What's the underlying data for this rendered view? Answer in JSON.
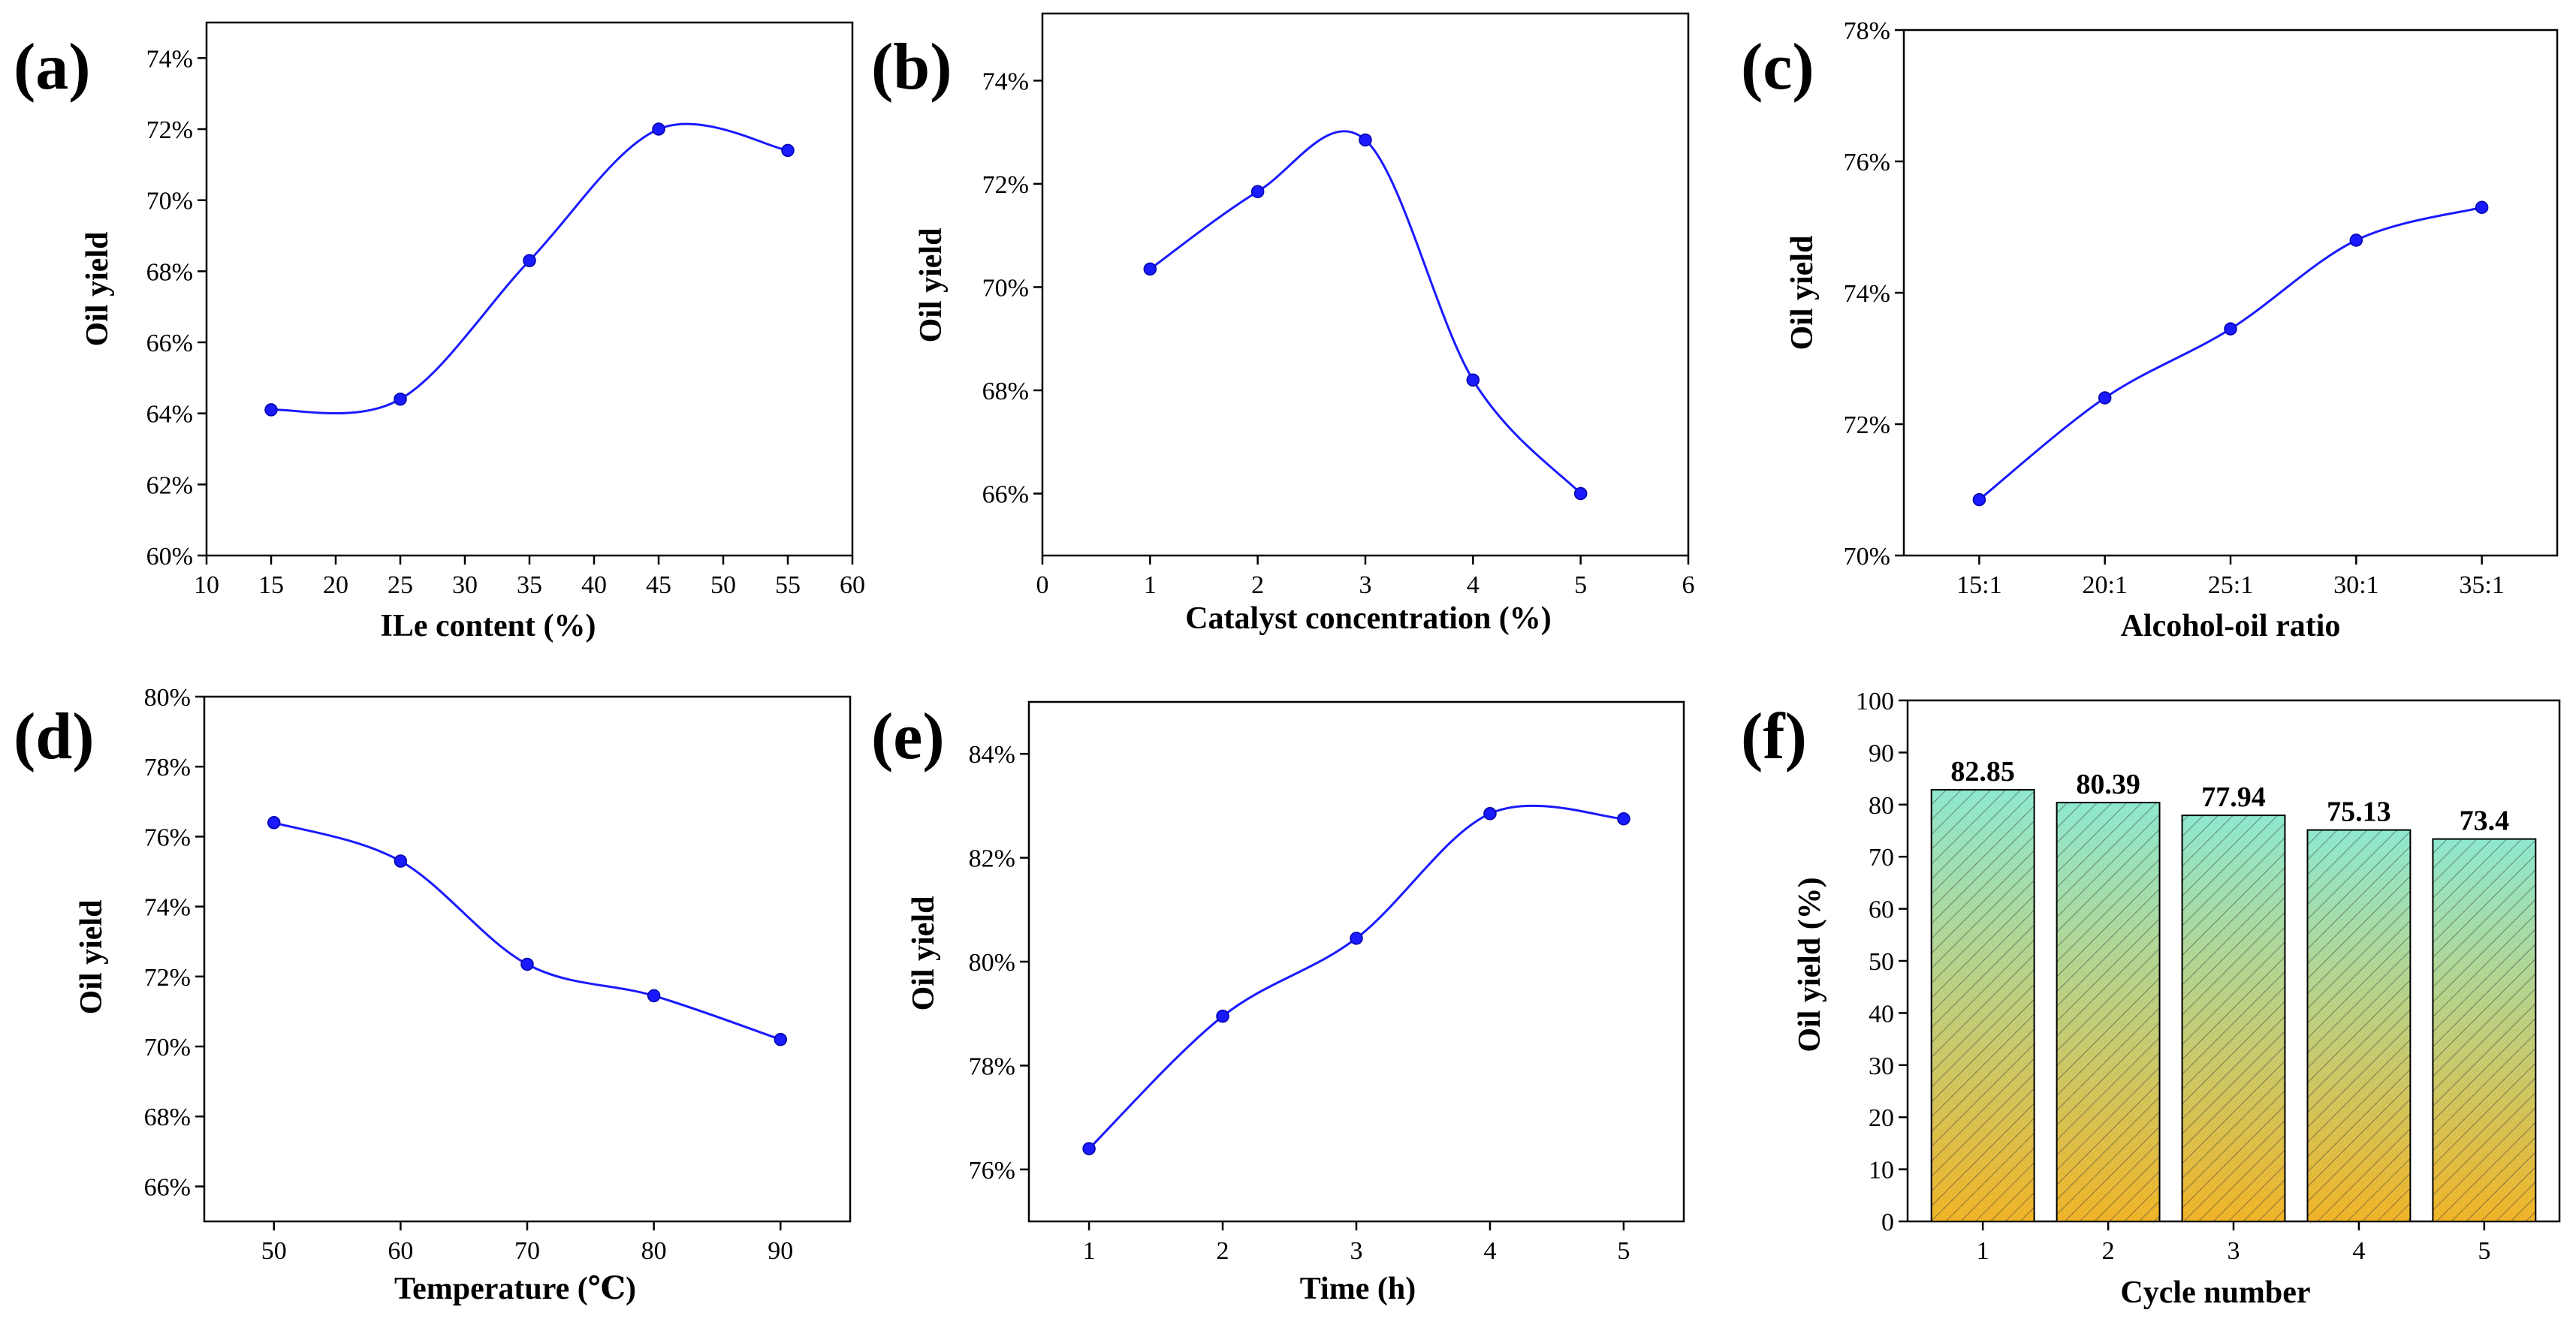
{
  "colors": {
    "line": "#1a1aff",
    "marker": "#1a1aff",
    "bar_top": "#8ee8cf",
    "bar_bottom": "#f0b428",
    "axis": "#000000"
  },
  "chart_data": [
    {
      "panel": "(a)",
      "type": "line",
      "xlabel": "ILe content (%)",
      "ylabel": "Oil yield",
      "xlim": [
        10,
        60
      ],
      "xticks": [
        "10",
        "15",
        "20",
        "25",
        "30",
        "35",
        "40",
        "45",
        "50",
        "55",
        "60"
      ],
      "ylim": [
        60,
        75
      ],
      "yticks": [
        "60%",
        "62%",
        "64%",
        "66%",
        "68%",
        "70%",
        "72%",
        "74%"
      ],
      "x": [
        15,
        25,
        35,
        45,
        55
      ],
      "values": [
        64.1,
        64.4,
        68.3,
        72.0,
        71.4
      ]
    },
    {
      "panel": "(b)",
      "type": "line",
      "xlabel": "Catalyst concentration (%)",
      "ylabel": "Oil yield",
      "xlim": [
        0,
        6
      ],
      "xticks": [
        "0",
        "1",
        "2",
        "3",
        "4",
        "5",
        "6"
      ],
      "ylim": [
        64.8,
        75.3
      ],
      "yticks": [
        "66%",
        "68%",
        "70%",
        "72%",
        "74%"
      ],
      "x": [
        1,
        2,
        3,
        4,
        5
      ],
      "values": [
        70.35,
        71.85,
        72.85,
        68.2,
        66.0
      ]
    },
    {
      "panel": "(c)",
      "type": "line",
      "xlabel": "Alcohol-oil ratio",
      "ylabel": "Oil yield",
      "xlim": [
        0.4,
        5.6
      ],
      "xticks": [
        "15:1",
        "20:1",
        "25:1",
        "30:1",
        "35:1"
      ],
      "ylim": [
        70,
        78
      ],
      "yticks": [
        "70%",
        "72%",
        "74%",
        "76%",
        "78%"
      ],
      "x": [
        1,
        2,
        3,
        4,
        5
      ],
      "values": [
        70.85,
        72.4,
        73.45,
        74.8,
        75.3
      ]
    },
    {
      "panel": "(d)",
      "type": "line",
      "xlabel": "Temperature (℃)",
      "ylabel": "Oil yield",
      "xlim": [
        44.5,
        95.5
      ],
      "xticks": [
        "50",
        "60",
        "70",
        "80",
        "90"
      ],
      "ylim": [
        65,
        80
      ],
      "yticks": [
        "66%",
        "68%",
        "70%",
        "72%",
        "74%",
        "76%",
        "78%",
        "80%"
      ],
      "x": [
        50,
        60,
        70,
        80,
        90
      ],
      "values": [
        76.4,
        75.3,
        72.35,
        71.45,
        70.2
      ]
    },
    {
      "panel": "(e)",
      "type": "line",
      "xlabel": "Time (h)",
      "ylabel": "Oil yield",
      "xlim": [
        0.55,
        5.45
      ],
      "xticks": [
        "1",
        "2",
        "3",
        "4",
        "5"
      ],
      "ylim": [
        75.0,
        85.0
      ],
      "yticks": [
        "76%",
        "78%",
        "80%",
        "82%",
        "84%"
      ],
      "x": [
        1,
        2,
        3,
        4,
        5
      ],
      "values": [
        76.4,
        78.95,
        80.45,
        82.85,
        82.75
      ]
    },
    {
      "panel": "(f)",
      "type": "bar",
      "xlabel": "Cycle number",
      "ylabel": "Oil yield (%)",
      "categories": [
        "1",
        "2",
        "3",
        "4",
        "5"
      ],
      "values": [
        82.85,
        80.39,
        77.94,
        75.13,
        73.4
      ],
      "data_labels": [
        "82.85",
        "80.39",
        "77.94",
        "75.13",
        "73.4"
      ],
      "ylim": [
        0,
        100
      ],
      "yticks": [
        "0",
        "10",
        "20",
        "30",
        "40",
        "50",
        "60",
        "70",
        "80",
        "90",
        "100"
      ]
    }
  ]
}
